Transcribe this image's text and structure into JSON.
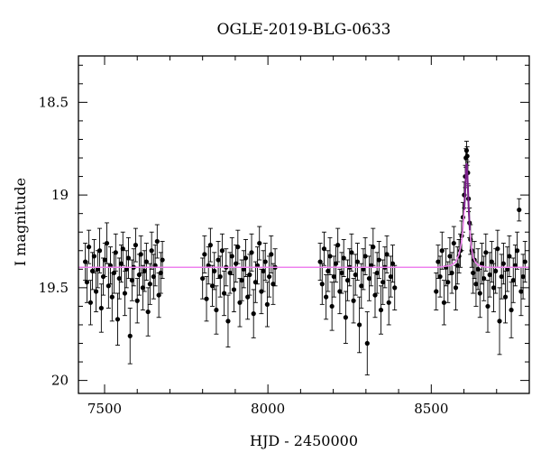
{
  "chart_data": {
    "type": "scatter",
    "title": "OGLE-2019-BLG-0633",
    "xlabel": "HJD - 2450000",
    "ylabel": "I magnitude",
    "xlim": [
      7420,
      8800
    ],
    "ylim": [
      20.07,
      18.25
    ],
    "y_inverted": true,
    "xticks": [
      7500,
      8000,
      8500
    ],
    "yticks": [
      18.5,
      19,
      19.5,
      20
    ],
    "ytick_labels": [
      "18.5",
      "19",
      "19.5",
      "20"
    ],
    "grid": false,
    "legend": "none",
    "colors": {
      "points": "#000000",
      "model": "#ee82ee",
      "model_peak": "#7a1f8a"
    },
    "baseline_mag": 19.39,
    "seasons": [
      {
        "x": [
          7441,
          7446,
          7452,
          7457,
          7463,
          7468,
          7474,
          7479,
          7485,
          7490,
          7496,
          7501,
          7507,
          7512,
          7518,
          7523,
          7529,
          7534,
          7540,
          7545,
          7551,
          7556,
          7562,
          7567,
          7573,
          7578,
          7584,
          7589,
          7595,
          7600,
          7606,
          7611,
          7617,
          7622,
          7628,
          7633,
          7639,
          7644,
          7650,
          7655,
          7661,
          7666,
          7672,
          7677
        ],
        "y": [
          19.36,
          19.47,
          19.28,
          19.58,
          19.41,
          19.33,
          19.52,
          19.4,
          19.3,
          19.61,
          19.44,
          19.35,
          19.26,
          19.49,
          19.38,
          19.55,
          19.42,
          19.31,
          19.67,
          19.45,
          19.37,
          19.29,
          19.53,
          19.4,
          19.34,
          19.76,
          19.46,
          19.39,
          19.27,
          19.57,
          19.43,
          19.32,
          19.5,
          19.41,
          19.36,
          19.63,
          19.48,
          19.3,
          19.44,
          19.38,
          19.25,
          19.54,
          19.42,
          19.35
        ],
        "err": [
          0.1,
          0.11,
          0.09,
          0.12,
          0.1,
          0.09,
          0.11,
          0.1,
          0.12,
          0.13,
          0.1,
          0.09,
          0.11,
          0.12,
          0.1,
          0.13,
          0.11,
          0.1,
          0.14,
          0.11,
          0.1,
          0.09,
          0.12,
          0.1,
          0.11,
          0.15,
          0.11,
          0.1,
          0.09,
          0.12,
          0.11,
          0.1,
          0.12,
          0.11,
          0.1,
          0.13,
          0.11,
          0.1,
          0.12,
          0.11,
          0.09,
          0.12,
          0.11,
          0.1
        ]
      },
      {
        "x": [
          7800,
          7806,
          7812,
          7818,
          7824,
          7830,
          7836,
          7842,
          7848,
          7854,
          7860,
          7866,
          7872,
          7878,
          7884,
          7890,
          7896,
          7902,
          7908,
          7914,
          7920,
          7926,
          7932,
          7938,
          7944,
          7950,
          7956,
          7962,
          7968,
          7974,
          7980,
          7986,
          7992,
          7998,
          8004,
          8010,
          8016,
          8022
        ],
        "y": [
          19.45,
          19.32,
          19.56,
          19.38,
          19.27,
          19.49,
          19.41,
          19.62,
          19.35,
          19.44,
          19.3,
          19.53,
          19.39,
          19.68,
          19.42,
          19.33,
          19.51,
          19.37,
          19.28,
          19.58,
          19.46,
          19.4,
          19.34,
          19.55,
          19.43,
          19.31,
          19.64,
          19.47,
          19.38,
          19.26,
          19.52,
          19.41,
          19.36,
          19.59,
          19.44,
          19.32,
          19.48,
          19.39
        ],
        "err": [
          0.11,
          0.1,
          0.12,
          0.1,
          0.09,
          0.11,
          0.1,
          0.13,
          0.1,
          0.11,
          0.09,
          0.12,
          0.1,
          0.14,
          0.11,
          0.1,
          0.12,
          0.1,
          0.09,
          0.13,
          0.11,
          0.1,
          0.1,
          0.12,
          0.11,
          0.1,
          0.13,
          0.11,
          0.1,
          0.09,
          0.12,
          0.11,
          0.1,
          0.12,
          0.11,
          0.1,
          0.11,
          0.1
        ]
      },
      {
        "x": [
          8160,
          8166,
          8172,
          8178,
          8184,
          8190,
          8196,
          8202,
          8208,
          8214,
          8220,
          8226,
          8232,
          8238,
          8244,
          8250,
          8256,
          8262,
          8268,
          8274,
          8280,
          8286,
          8292,
          8298,
          8304,
          8310,
          8316,
          8322,
          8328,
          8334,
          8340,
          8346,
          8352,
          8358,
          8364,
          8370,
          8376,
          8382,
          8388
        ],
        "y": [
          19.36,
          19.48,
          19.29,
          19.55,
          19.41,
          19.33,
          19.6,
          19.44,
          19.37,
          19.27,
          19.52,
          19.42,
          19.34,
          19.66,
          19.46,
          19.39,
          19.31,
          19.57,
          19.43,
          19.36,
          19.7,
          19.49,
          19.4,
          19.33,
          19.8,
          19.45,
          19.38,
          19.28,
          19.54,
          19.42,
          19.35,
          19.62,
          19.47,
          19.39,
          19.32,
          19.58,
          19.44,
          19.37,
          19.5
        ],
        "err": [
          0.1,
          0.11,
          0.09,
          0.12,
          0.11,
          0.1,
          0.13,
          0.11,
          0.1,
          0.09,
          0.12,
          0.11,
          0.1,
          0.14,
          0.11,
          0.1,
          0.1,
          0.12,
          0.11,
          0.1,
          0.15,
          0.12,
          0.11,
          0.1,
          0.17,
          0.12,
          0.11,
          0.1,
          0.12,
          0.11,
          0.1,
          0.13,
          0.12,
          0.11,
          0.1,
          0.12,
          0.11,
          0.1,
          0.12
        ]
      },
      {
        "x": [
          8515,
          8521,
          8527,
          8533,
          8539,
          8545,
          8551,
          8557,
          8563,
          8569,
          8575,
          8580,
          8585,
          8589,
          8593,
          8597,
          8601,
          8604,
          8606,
          8608,
          8610,
          8612,
          8614,
          8617,
          8620,
          8624,
          8628,
          8632,
          8637,
          8643,
          8649,
          8655,
          8661,
          8667,
          8673,
          8679,
          8685,
          8691,
          8697,
          8703,
          8709,
          8715,
          8721,
          8727,
          8733,
          8739,
          8745,
          8751,
          8757,
          8763,
          8769,
          8775,
          8781,
          8787
        ],
        "y": [
          19.52,
          19.36,
          19.44,
          19.3,
          19.58,
          19.39,
          19.47,
          19.33,
          19.42,
          19.26,
          19.5,
          19.38,
          19.33,
          19.3,
          19.22,
          19.12,
          19.0,
          18.9,
          18.8,
          18.76,
          18.79,
          18.88,
          19.02,
          19.15,
          19.24,
          19.3,
          19.42,
          19.35,
          19.48,
          19.4,
          19.53,
          19.37,
          19.45,
          19.31,
          19.6,
          19.43,
          19.36,
          19.5,
          19.41,
          19.29,
          19.68,
          19.44,
          19.37,
          19.55,
          19.4,
          19.33,
          19.62,
          19.46,
          19.38,
          19.3,
          19.08,
          19.52,
          19.44,
          19.36
        ],
        "err": [
          0.1,
          0.09,
          0.11,
          0.1,
          0.12,
          0.1,
          0.11,
          0.1,
          0.11,
          0.09,
          0.12,
          0.1,
          0.09,
          0.09,
          0.08,
          0.08,
          0.07,
          0.06,
          0.05,
          0.05,
          0.05,
          0.06,
          0.07,
          0.08,
          0.08,
          0.09,
          0.11,
          0.1,
          0.12,
          0.11,
          0.13,
          0.11,
          0.12,
          0.1,
          0.14,
          0.12,
          0.11,
          0.13,
          0.12,
          0.1,
          0.18,
          0.12,
          0.11,
          0.14,
          0.12,
          0.11,
          0.15,
          0.12,
          0.11,
          0.1,
          0.06,
          0.13,
          0.12,
          0.11
        ]
      }
    ],
    "model": {
      "x": [
        7420,
        8520,
        8560,
        8575,
        8585,
        8592,
        8597,
        8601,
        8604,
        8606,
        8607,
        8608,
        8609,
        8610,
        8611,
        8613,
        8615,
        8618,
        8622,
        8627,
        8634,
        8645,
        8670,
        8800
      ],
      "y": [
        19.39,
        19.39,
        19.38,
        19.36,
        19.32,
        19.26,
        19.18,
        19.08,
        18.97,
        18.88,
        18.84,
        18.83,
        18.84,
        18.87,
        18.91,
        19.0,
        19.09,
        19.19,
        19.27,
        19.33,
        19.36,
        19.38,
        19.39,
        19.39
      ]
    }
  }
}
